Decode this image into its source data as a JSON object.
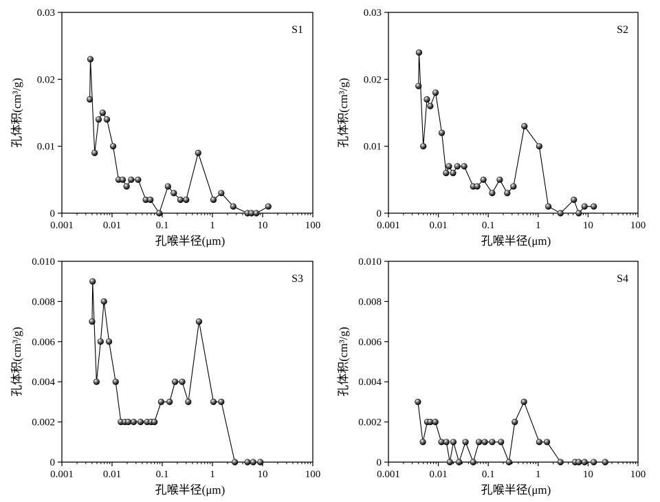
{
  "chart_data": [
    {
      "type": "line",
      "title": "S1",
      "xlabel": "孔喉半径(μm)",
      "ylabel": "孔体积(cm³/g)",
      "xscale": "log",
      "xlim": [
        0.001,
        100
      ],
      "ylim": [
        0,
        0.03
      ],
      "xticks": [
        "0.001",
        "0.01",
        "0.1",
        "1",
        "10",
        "100"
      ],
      "yticks": [
        "0",
        "0.01",
        "0.02",
        "0.03"
      ],
      "x": [
        0.0036,
        0.0037,
        0.0045,
        0.0054,
        0.0065,
        0.0079,
        0.0105,
        0.0135,
        0.0163,
        0.0195,
        0.024,
        0.033,
        0.047,
        0.058,
        0.087,
        0.13,
        0.17,
        0.23,
        0.3,
        0.52,
        1.05,
        1.5,
        2.6,
        5.0,
        6.0,
        7.5,
        13.0
      ],
      "y": [
        0.017,
        0.023,
        0.009,
        0.014,
        0.015,
        0.014,
        0.01,
        0.005,
        0.005,
        0.004,
        0.005,
        0.005,
        0.002,
        0.002,
        0.0,
        0.004,
        0.003,
        0.002,
        0.002,
        0.009,
        0.002,
        0.003,
        0.001,
        0.0,
        0.0,
        0.0,
        0.001
      ]
    },
    {
      "type": "line",
      "title": "S2",
      "xlabel": "孔喉半径(μm)",
      "ylabel": "孔体积(cm³/g)",
      "xscale": "log",
      "xlim": [
        0.001,
        100
      ],
      "ylim": [
        0,
        0.03
      ],
      "xticks": [
        "0.001",
        "0.01",
        "0.1",
        "1",
        "10",
        "100"
      ],
      "yticks": [
        "0",
        "0.01",
        "0.02",
        "0.03"
      ],
      "x": [
        0.004,
        0.0041,
        0.005,
        0.0059,
        0.0069,
        0.0088,
        0.0117,
        0.0143,
        0.0163,
        0.0197,
        0.024,
        0.033,
        0.05,
        0.06,
        0.08,
        0.12,
        0.17,
        0.24,
        0.32,
        0.53,
        1.05,
        1.6,
        2.8,
        5.2,
        6.5,
        8.5,
        13.0
      ],
      "y": [
        0.019,
        0.024,
        0.01,
        0.017,
        0.016,
        0.018,
        0.012,
        0.006,
        0.007,
        0.006,
        0.007,
        0.007,
        0.004,
        0.004,
        0.005,
        0.003,
        0.005,
        0.003,
        0.004,
        0.013,
        0.01,
        0.001,
        0.0,
        0.002,
        0.0,
        0.001,
        0.001
      ]
    },
    {
      "type": "line",
      "title": "S3",
      "xlabel": "孔喉半径(μm)",
      "ylabel": "孔体积(cm³/g)",
      "xscale": "log",
      "xlim": [
        0.001,
        100
      ],
      "ylim": [
        0,
        0.01
      ],
      "xticks": [
        "0.001",
        "0.01",
        "0.1",
        "1",
        "10",
        "100"
      ],
      "yticks": [
        "0",
        "0.002",
        "0.004",
        "0.006",
        "0.008",
        "0.010"
      ],
      "x": [
        0.004,
        0.0041,
        0.0049,
        0.0059,
        0.0069,
        0.0087,
        0.0118,
        0.015,
        0.018,
        0.021,
        0.027,
        0.037,
        0.05,
        0.06,
        0.07,
        0.095,
        0.14,
        0.18,
        0.25,
        0.33,
        0.54,
        1.05,
        1.5,
        2.8,
        5.0,
        6.5,
        9.0
      ],
      "y": [
        0.007,
        0.009,
        0.004,
        0.006,
        0.008,
        0.006,
        0.004,
        0.002,
        0.002,
        0.002,
        0.002,
        0.002,
        0.002,
        0.002,
        0.002,
        0.003,
        0.003,
        0.004,
        0.004,
        0.003,
        0.007,
        0.003,
        0.003,
        0.0,
        0.0,
        0.0,
        0.0
      ]
    },
    {
      "type": "line",
      "title": "S4",
      "xlabel": "孔喉半径(μm)",
      "ylabel": "孔体积(cm³/g)",
      "xscale": "log",
      "xlim": [
        0.001,
        100
      ],
      "ylim": [
        0,
        0.01
      ],
      "xticks": [
        "0.001",
        "0.01",
        "0.1",
        "1",
        "10",
        "100"
      ],
      "yticks": [
        "0",
        "0.002",
        "0.004",
        "0.006",
        "0.008",
        "0.010"
      ],
      "x": [
        0.0039,
        0.0049,
        0.006,
        0.0069,
        0.0087,
        0.0115,
        0.0145,
        0.017,
        0.02,
        0.026,
        0.035,
        0.05,
        0.065,
        0.085,
        0.12,
        0.18,
        0.26,
        0.34,
        0.52,
        1.05,
        1.5,
        2.8,
        5.5,
        6.5,
        8.5,
        13.0,
        22.0
      ],
      "y": [
        0.003,
        0.001,
        0.002,
        0.002,
        0.002,
        0.001,
        0.001,
        0.0,
        0.001,
        0.0,
        0.001,
        0.0,
        0.001,
        0.001,
        0.001,
        0.001,
        0.0,
        0.002,
        0.003,
        0.001,
        0.001,
        0.0,
        0.0,
        0.0,
        0.0,
        0.0,
        0.0
      ]
    }
  ]
}
